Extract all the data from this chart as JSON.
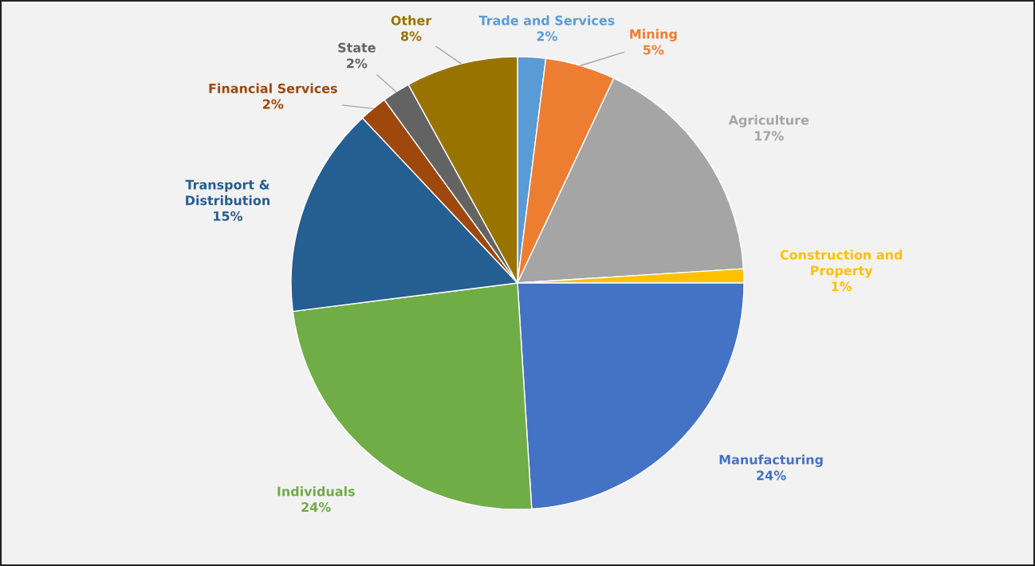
{
  "chart_data": {
    "type": "pie",
    "categories": [
      "Trade and Services",
      "Mining",
      "Agriculture",
      "Construction and Property",
      "Manufacturing",
      "Individuals",
      "Transport & Distribution",
      "Financial Services",
      "State",
      "Other"
    ],
    "values": [
      2,
      5,
      17,
      1,
      24,
      24,
      15,
      2,
      2,
      8
    ],
    "colors": [
      "#5b9bd5",
      "#ed7d31",
      "#a5a5a5",
      "#ffc000",
      "#4472c4",
      "#70ad47",
      "#255e91",
      "#9e480e",
      "#636363",
      "#997300"
    ],
    "value_labels": [
      "2%",
      "5%",
      "17%",
      "1%",
      "24%",
      "24%",
      "15%",
      "2%",
      "2%",
      "8%"
    ]
  }
}
